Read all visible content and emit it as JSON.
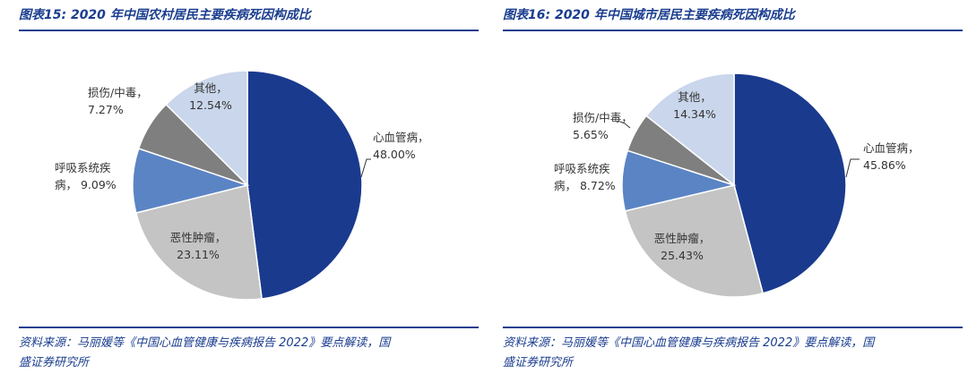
{
  "colors": {
    "accent": "#1a3d8f",
    "cardiovascular": "#1a3a8e",
    "tumor": "#c4c4c4",
    "respiratory": "#5b84c4",
    "injury": "#7f7f7f",
    "other": "#c9d6eb"
  },
  "chart_data": [
    {
      "type": "pie",
      "title": "图表15:  2020 年中国农村居民主要疾病死因构成比",
      "source_line1": "资料来源：马丽媛等《中国心血管健康与疾病报告 2022》要点解读，国",
      "source_line2": "盛证券研究所",
      "slices": [
        {
          "label": "心血管病",
          "value": 48.0,
          "value_text": "48.00%",
          "color": "#1a3a8e"
        },
        {
          "label": "恶性肿瘤",
          "value": 23.11,
          "value_text": "23.11%",
          "color": "#c4c4c4"
        },
        {
          "label": "呼吸系统疾病",
          "value": 9.09,
          "value_text": "9.09%",
          "color": "#5b84c4"
        },
        {
          "label": "损伤/中毒",
          "value": 7.27,
          "value_text": "7.27%",
          "color": "#7f7f7f"
        },
        {
          "label": "其他",
          "value": 12.54,
          "value_text": "12.54%",
          "color": "#c9d6eb"
        }
      ]
    },
    {
      "type": "pie",
      "title": "图表16:  2020 年中国城市居民主要疾病死因构成比",
      "source_line1": "资料来源：马丽媛等《中国心血管健康与疾病报告 2022》要点解读，国",
      "source_line2": "盛证券研究所",
      "slices": [
        {
          "label": "心血管病",
          "value": 45.86,
          "value_text": "45.86%",
          "color": "#1a3a8e"
        },
        {
          "label": "恶性肿瘤",
          "value": 25.43,
          "value_text": "25.43%",
          "color": "#c4c4c4"
        },
        {
          "label": "呼吸系统疾病",
          "value": 8.72,
          "value_text": "8.72%",
          "color": "#5b84c4"
        },
        {
          "label": "损伤/中毒",
          "value": 5.65,
          "value_text": "5.65%",
          "color": "#7f7f7f"
        },
        {
          "label": "其他",
          "value": 14.34,
          "value_text": "14.34%",
          "color": "#c9d6eb"
        }
      ]
    }
  ]
}
